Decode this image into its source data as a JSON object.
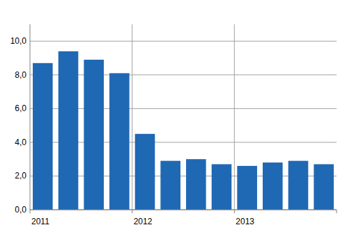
{
  "chart_data": {
    "type": "bar",
    "categories": [
      "2011",
      null,
      null,
      null,
      "2012",
      null,
      null,
      null,
      "2013",
      null,
      null,
      null
    ],
    "values": [
      8.7,
      9.4,
      8.9,
      8.1,
      4.5,
      2.9,
      3.0,
      2.7,
      2.6,
      2.8,
      2.9,
      2.7
    ],
    "color": "#1f68b3",
    "ylim": [
      0,
      11
    ],
    "yticks": [
      {
        "value": 0,
        "label": "0,0"
      },
      {
        "value": 2,
        "label": "2,0"
      },
      {
        "value": 4,
        "label": "4,0"
      },
      {
        "value": 6,
        "label": "6,0"
      },
      {
        "value": 8,
        "label": "8,0"
      },
      {
        "value": 10,
        "label": "10,0"
      }
    ],
    "grid": true
  }
}
